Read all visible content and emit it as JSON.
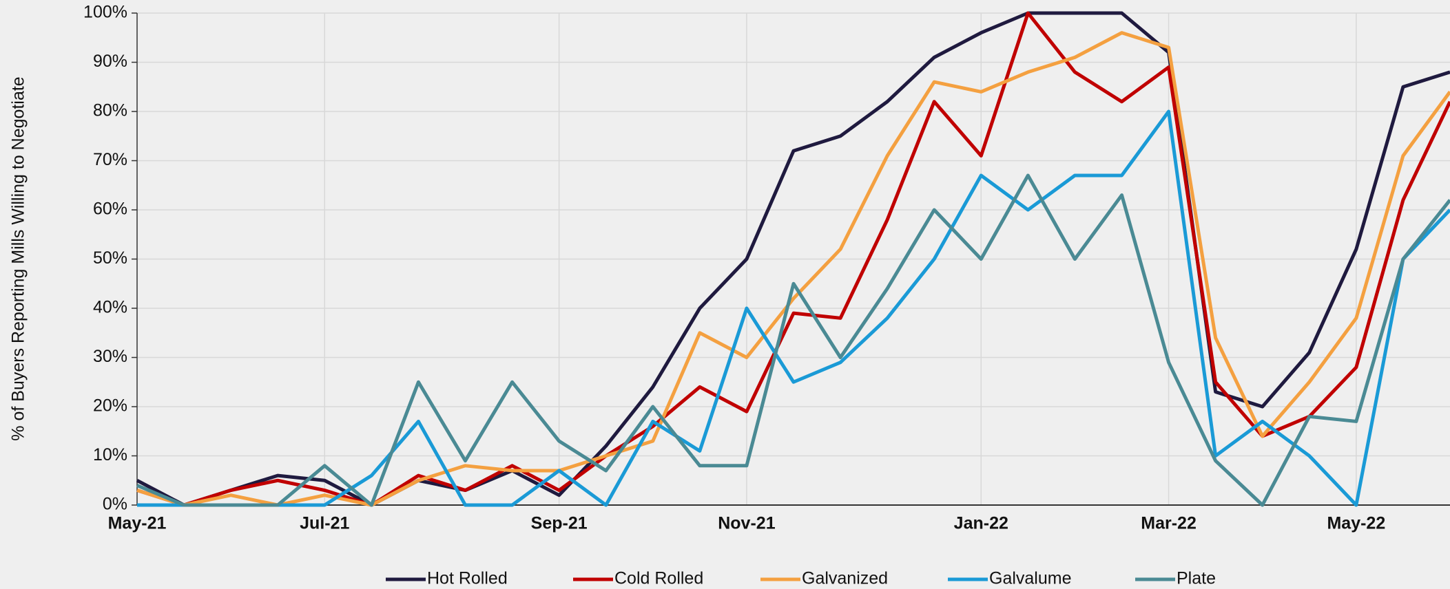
{
  "chart_data": {
    "type": "line",
    "y_label": "% of Buyers Reporting Mills Willing to Negotiate",
    "categories": [
      "May-21",
      null,
      null,
      null,
      "Jul-21",
      null,
      null,
      null,
      null,
      "Sep-21",
      null,
      null,
      null,
      "Nov-21",
      null,
      null,
      null,
      null,
      "Jan-22",
      null,
      null,
      null,
      "Mar-22",
      null,
      null,
      null,
      "May-22",
      null,
      null
    ],
    "series": [
      {
        "name": "Hot Rolled",
        "color": "#1f1a3f",
        "values": [
          5,
          0,
          3,
          6,
          5,
          0,
          5,
          3,
          7,
          2,
          12,
          24,
          40,
          50,
          72,
          75,
          82,
          91,
          96,
          100,
          100,
          100,
          92,
          23,
          20,
          31,
          52,
          85,
          88
        ]
      },
      {
        "name": "Cold Rolled",
        "color": "#c00000",
        "values": [
          3,
          0,
          3,
          5,
          3,
          0,
          6,
          3,
          8,
          3,
          10,
          16,
          24,
          19,
          39,
          38,
          58,
          82,
          71,
          100,
          88,
          82,
          89,
          25,
          14,
          18,
          28,
          62,
          82
        ]
      },
      {
        "name": "Galvanized",
        "color": "#f4a040",
        "values": [
          3,
          0,
          2,
          0,
          2,
          0,
          5,
          8,
          7,
          7,
          10,
          13,
          35,
          30,
          42,
          52,
          71,
          86,
          84,
          88,
          91,
          96,
          93,
          34,
          14,
          25,
          38,
          71,
          84
        ]
      },
      {
        "name": "Galvalume",
        "color": "#1a9ad6",
        "values": [
          0,
          0,
          0,
          0,
          0,
          6,
          17,
          0,
          0,
          7,
          0,
          17,
          11,
          40,
          25,
          29,
          38,
          50,
          67,
          60,
          67,
          67,
          80,
          10,
          17,
          10,
          0,
          50,
          60
        ]
      },
      {
        "name": "Plate",
        "color": "#4a8a94",
        "values": [
          4,
          0,
          0,
          0,
          8,
          0,
          25,
          9,
          25,
          13,
          7,
          20,
          8,
          8,
          45,
          30,
          44,
          60,
          50,
          67,
          50,
          63,
          29,
          9,
          0,
          18,
          17,
          50,
          62
        ]
      }
    ],
    "ylim": [
      0,
      100
    ],
    "yticks": [
      {
        "value": 0,
        "label": "0%"
      },
      {
        "value": 10,
        "label": "10%"
      },
      {
        "value": 20,
        "label": "20%"
      },
      {
        "value": 30,
        "label": "30%"
      },
      {
        "value": 40,
        "label": "40%"
      },
      {
        "value": 50,
        "label": "50%"
      },
      {
        "value": 60,
        "label": "60%"
      },
      {
        "value": 70,
        "label": "70%"
      },
      {
        "value": 80,
        "label": "80%"
      },
      {
        "value": 90,
        "label": "90%"
      },
      {
        "value": 100,
        "label": "100%"
      }
    ],
    "grid": true,
    "legend": "bottom"
  }
}
